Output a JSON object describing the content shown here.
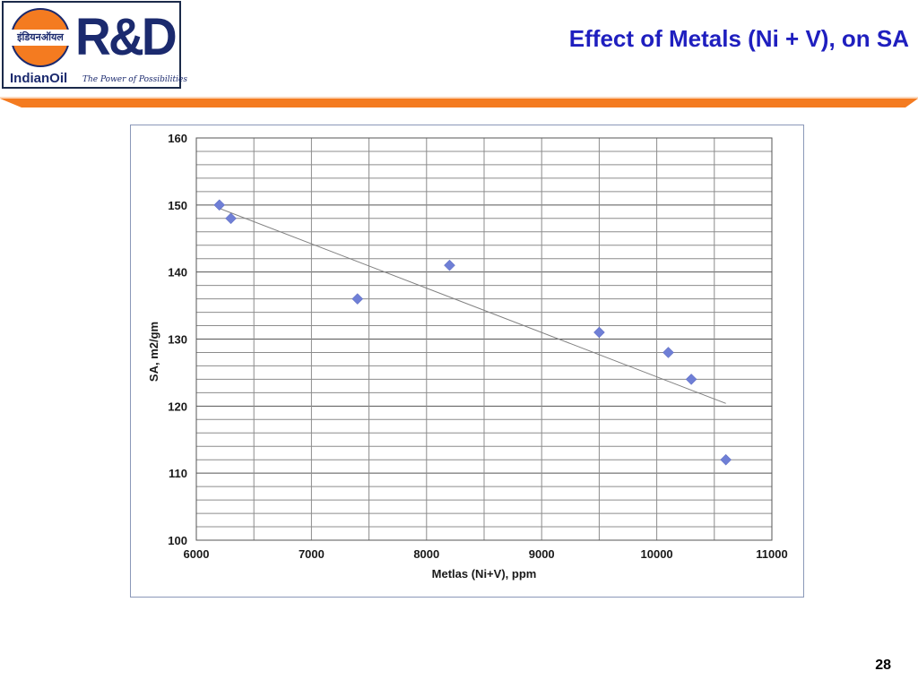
{
  "header": {
    "logo_hindi": "इंडियनऑयल",
    "logo_rd": "R&D",
    "logo_name": "IndianOil",
    "logo_tagline": "The Power of Possibilities",
    "accent_color": "#f47b20",
    "brand_color": "#1b2a6e"
  },
  "slide": {
    "title": "Effect of Metals (Ni + V), on SA",
    "title_color": "#1f1fbf",
    "page_number": "28"
  },
  "chart_data": {
    "type": "scatter",
    "xlabel": "Metlas (Ni+V),  ppm",
    "ylabel": "SA, m2/gm",
    "xlim": [
      6000,
      11000
    ],
    "ylim": [
      100,
      160
    ],
    "x_ticks": [
      6000,
      7000,
      8000,
      9000,
      10000,
      11000
    ],
    "y_ticks": [
      100,
      110,
      120,
      130,
      140,
      150,
      160
    ],
    "grid": true,
    "legend": "none",
    "marker": "diamond",
    "marker_color": "#6f7fd6",
    "series": [
      {
        "x": [
          6200,
          6300,
          7400,
          8200,
          9500,
          10100,
          10300,
          10600
        ],
        "y": [
          150,
          148,
          136,
          141,
          131,
          128,
          124,
          112
        ]
      }
    ],
    "trendline": {
      "type": "linear",
      "x": [
        6200,
        10600
      ],
      "y": [
        149.5,
        120.4
      ],
      "color": "#808080"
    }
  }
}
